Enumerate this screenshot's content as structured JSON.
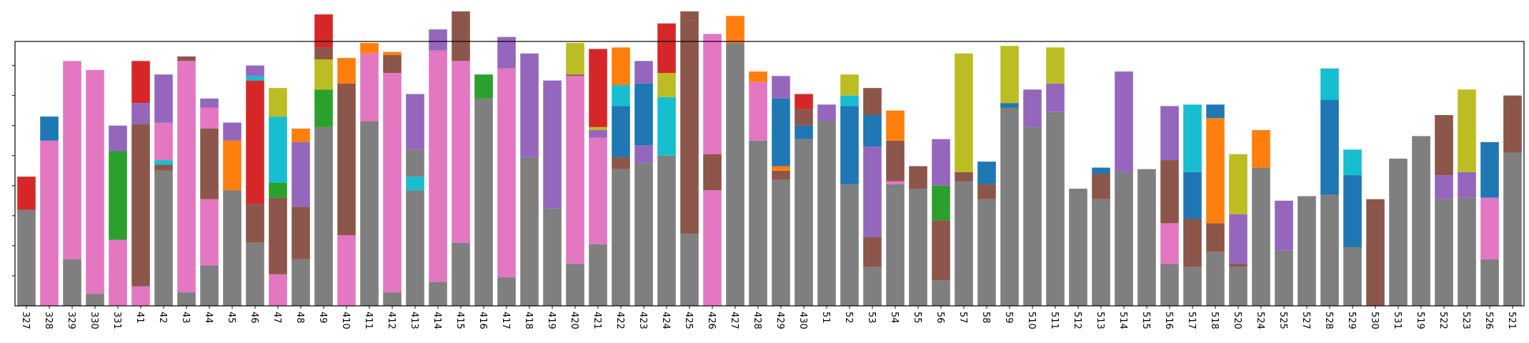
{
  "chart_data": {
    "type": "bar",
    "stacked": true,
    "title": "",
    "xlabel": "",
    "ylabel": "",
    "ylim": [
      0,
      8.8
    ],
    "yticks_visible_count": 8,
    "grid": false,
    "legend": "none",
    "categories": [
      "327",
      "328",
      "329",
      "330",
      "331",
      "41",
      "42",
      "43",
      "44",
      "45",
      "46",
      "47",
      "48",
      "49",
      "410",
      "411",
      "412",
      "413",
      "414",
      "415",
      "416",
      "417",
      "418",
      "419",
      "420",
      "421",
      "422",
      "423",
      "424",
      "425",
      "426",
      "427",
      "428",
      "429",
      "430",
      "51",
      "52",
      "53",
      "54",
      "55",
      "56",
      "57",
      "58",
      "59",
      "510",
      "511",
      "512",
      "513",
      "514",
      "515",
      "516",
      "517",
      "518",
      "520",
      "524",
      "525",
      "527",
      "528",
      "529",
      "530",
      "531",
      "519",
      "522",
      "523",
      "526",
      "521"
    ],
    "segments": [
      [
        [
          "gray",
          3.2
        ],
        [
          "red",
          1.1
        ]
      ],
      [
        [
          "pink",
          5.5
        ],
        [
          "blue",
          0.8
        ]
      ],
      [
        [
          "gray",
          1.55
        ],
        [
          "pink",
          6.6
        ]
      ],
      [
        [
          "gray",
          0.4
        ],
        [
          "pink",
          7.45
        ]
      ],
      [
        [
          "pink",
          2.2
        ],
        [
          "green",
          2.95
        ],
        [
          "purple",
          0.85
        ]
      ],
      [
        [
          "pink",
          0.65
        ],
        [
          "brown",
          5.4
        ],
        [
          "purple",
          0.7
        ],
        [
          "red",
          1.4
        ]
      ],
      [
        [
          "gray",
          4.5
        ],
        [
          "brown",
          0.2
        ],
        [
          "cyan",
          0.15
        ],
        [
          "pink",
          1.25
        ],
        [
          "purple",
          1.6
        ]
      ],
      [
        [
          "gray",
          0.45
        ],
        [
          "pink",
          7.7
        ],
        [
          "brown",
          0.15
        ]
      ],
      [
        [
          "gray",
          1.35
        ],
        [
          "pink",
          2.2
        ],
        [
          "brown",
          2.35
        ],
        [
          "pink",
          0.7
        ],
        [
          "purple",
          0.3
        ]
      ],
      [
        [
          "gray",
          3.85
        ],
        [
          "orange",
          1.65
        ],
        [
          "purple",
          0.6
        ]
      ],
      [
        [
          "gray",
          2.1
        ],
        [
          "brown",
          1.3
        ],
        [
          "red",
          4.1
        ],
        [
          "cyan",
          0.15
        ],
        [
          "purple",
          0.35
        ]
      ],
      [
        [
          "pink",
          1.05
        ],
        [
          "brown",
          2.55
        ],
        [
          "green",
          0.5
        ],
        [
          "cyan",
          2.2
        ],
        [
          "olive",
          0.95
        ]
      ],
      [
        [
          "gray",
          1.55
        ],
        [
          "brown",
          1.75
        ],
        [
          "purple",
          2.15
        ],
        [
          "orange",
          0.45
        ]
      ],
      [
        [
          "gray",
          5.95
        ],
        [
          "green",
          1.25
        ],
        [
          "olive",
          1.0
        ],
        [
          "brown",
          0.4
        ],
        [
          "red",
          1.1
        ]
      ],
      [
        [
          "pink",
          2.35
        ],
        [
          "brown",
          5.05
        ],
        [
          "orange",
          0.85
        ]
      ],
      [
        [
          "gray",
          6.15
        ],
        [
          "pink",
          2.25
        ],
        [
          "orange",
          0.35
        ]
      ],
      [
        [
          "gray",
          0.45
        ],
        [
          "pink",
          7.3
        ],
        [
          "brown",
          0.6
        ],
        [
          "orange",
          0.1
        ]
      ],
      [
        [
          "gray",
          3.85
        ],
        [
          "cyan",
          0.45
        ],
        [
          "gray",
          0.9
        ],
        [
          "purple",
          1.85
        ]
      ],
      [
        [
          "gray",
          0.8
        ],
        [
          "pink",
          7.7
        ],
        [
          "purple",
          0.7
        ]
      ],
      [
        [
          "gray",
          2.1
        ],
        [
          "pink",
          6.05
        ],
        [
          "brown",
          1.65
        ]
      ],
      [
        [
          "gray",
          6.9
        ],
        [
          "green",
          0.8
        ]
      ],
      [
        [
          "gray",
          0.95
        ],
        [
          "pink",
          6.95
        ],
        [
          "purple",
          1.05
        ]
      ],
      [
        [
          "gray",
          4.95
        ],
        [
          "purple",
          3.45
        ]
      ],
      [
        [
          "gray",
          3.25
        ],
        [
          "purple",
          4.25
        ]
      ],
      [
        [
          "gray",
          1.4
        ],
        [
          "pink",
          6.25
        ],
        [
          "brown",
          0.05
        ],
        [
          "olive",
          1.05
        ]
      ],
      [
        [
          "gray",
          2.05
        ],
        [
          "pink",
          3.55
        ],
        [
          "purple",
          0.25
        ],
        [
          "olive",
          0.1
        ],
        [
          "red",
          2.6
        ]
      ],
      [
        [
          "gray",
          4.55
        ],
        [
          "brown",
          0.4
        ],
        [
          "blue",
          1.7
        ],
        [
          "cyan",
          0.7
        ],
        [
          "orange",
          1.25
        ]
      ],
      [
        [
          "gray",
          4.75
        ],
        [
          "purple",
          0.6
        ],
        [
          "blue",
          2.05
        ],
        [
          "purple",
          0.75
        ]
      ],
      [
        [
          "gray",
          5.0
        ],
        [
          "cyan",
          1.95
        ],
        [
          "olive",
          0.8
        ],
        [
          "red",
          1.65
        ]
      ],
      [
        [
          "gray",
          2.4
        ],
        [
          "brown",
          7.1
        ],
        [
          "brown",
          0.3
        ]
      ],
      [
        [
          "pink",
          3.85
        ],
        [
          "brown",
          1.2
        ],
        [
          "pink",
          4.0
        ]
      ],
      [
        [
          "gray",
          8.75
        ],
        [
          "orange",
          0.9
        ]
      ],
      [
        [
          "gray",
          5.5
        ],
        [
          "pink",
          1.95
        ],
        [
          "orange",
          0.35
        ]
      ],
      [
        [
          "gray",
          4.2
        ],
        [
          "brown",
          0.3
        ],
        [
          "orange",
          0.15
        ],
        [
          "blue",
          2.25
        ],
        [
          "purple",
          0.75
        ]
      ],
      [
        [
          "gray",
          5.55
        ],
        [
          "blue",
          0.45
        ],
        [
          "brown",
          0.55
        ],
        [
          "red",
          0.5
        ]
      ],
      [
        [
          "gray",
          6.15
        ],
        [
          "purple",
          0.55
        ]
      ],
      [
        [
          "gray",
          4.05
        ],
        [
          "blue",
          2.6
        ],
        [
          "cyan",
          0.35
        ],
        [
          "olive",
          0.7
        ]
      ],
      [
        [
          "gray",
          1.3
        ],
        [
          "brown",
          1.0
        ],
        [
          "purple",
          3.0
        ],
        [
          "blue",
          1.05
        ],
        [
          "brown",
          0.9
        ]
      ],
      [
        [
          "gray",
          4.05
        ],
        [
          "pink",
          0.1
        ],
        [
          "brown",
          1.35
        ],
        [
          "orange",
          1.0
        ]
      ],
      [
        [
          "gray",
          3.9
        ],
        [
          "brown",
          0.75
        ]
      ],
      [
        [
          "gray",
          0.85
        ],
        [
          "brown",
          2.0
        ],
        [
          "green",
          1.15
        ],
        [
          "purple",
          1.55
        ]
      ],
      [
        [
          "gray",
          4.15
        ],
        [
          "brown",
          0.3
        ],
        [
          "olive",
          3.95
        ]
      ],
      [
        [
          "gray",
          3.55
        ],
        [
          "brown",
          0.5
        ],
        [
          "blue",
          0.75
        ]
      ],
      [
        [
          "gray",
          6.6
        ],
        [
          "blue",
          0.15
        ],
        [
          "olive",
          1.9
        ]
      ],
      [
        [
          "gray",
          5.95
        ],
        [
          "purple",
          1.25
        ]
      ],
      [
        [
          "gray",
          6.45
        ],
        [
          "purple",
          0.95
        ],
        [
          "olive",
          1.2
        ]
      ],
      [
        [
          "gray",
          3.9
        ]
      ],
      [
        [
          "gray",
          3.55
        ],
        [
          "brown",
          0.85
        ],
        [
          "blue",
          0.2
        ]
      ],
      [
        [
          "gray",
          4.45
        ],
        [
          "purple",
          3.35
        ]
      ],
      [
        [
          "gray",
          4.55
        ]
      ],
      [
        [
          "gray",
          1.4
        ],
        [
          "pink",
          1.35
        ],
        [
          "brown",
          2.1
        ],
        [
          "purple",
          1.8
        ]
      ],
      [
        [
          "gray",
          1.3
        ],
        [
          "brown",
          1.6
        ],
        [
          "blue",
          1.55
        ],
        [
          "cyan",
          2.25
        ]
      ],
      [
        [
          "gray",
          1.8
        ],
        [
          "brown",
          0.95
        ],
        [
          "orange",
          3.5
        ],
        [
          "blue",
          0.45
        ]
      ],
      [
        [
          "gray",
          1.3
        ],
        [
          "brown",
          0.1
        ],
        [
          "purple",
          1.65
        ],
        [
          "olive",
          2.0
        ]
      ],
      [
        [
          "gray",
          4.6
        ],
        [
          "orange",
          1.25
        ]
      ],
      [
        [
          "gray",
          1.85
        ],
        [
          "purple",
          1.65
        ]
      ],
      [
        [
          "gray",
          3.65
        ]
      ],
      [
        [
          "gray",
          3.7
        ],
        [
          "blue",
          3.15
        ],
        [
          "cyan",
          1.05
        ]
      ],
      [
        [
          "gray",
          1.95
        ],
        [
          "blue",
          2.4
        ],
        [
          "cyan",
          0.85
        ]
      ],
      [
        [
          "brown",
          3.55
        ]
      ],
      [
        [
          "gray",
          4.9
        ]
      ],
      [
        [
          "gray",
          5.65
        ]
      ],
      [
        [
          "gray",
          3.55
        ],
        [
          "purple",
          0.8
        ],
        [
          "brown",
          2.0
        ]
      ],
      [
        [
          "gray",
          3.6
        ],
        [
          "purple",
          0.85
        ],
        [
          "olive",
          2.75
        ]
      ],
      [
        [
          "gray",
          1.55
        ],
        [
          "pink",
          2.05
        ],
        [
          "blue",
          1.85
        ]
      ],
      [
        [
          "gray",
          5.1
        ],
        [
          "brown",
          1.9
        ]
      ]
    ]
  },
  "colors": {
    "blue": "#1f77b4",
    "orange": "#ff7f0e",
    "green": "#2ca02c",
    "red": "#d62728",
    "purple": "#9467bd",
    "brown": "#8c564b",
    "pink": "#e377c2",
    "gray": "#7f7f7f",
    "olive": "#bcbd22",
    "cyan": "#17becf"
  }
}
